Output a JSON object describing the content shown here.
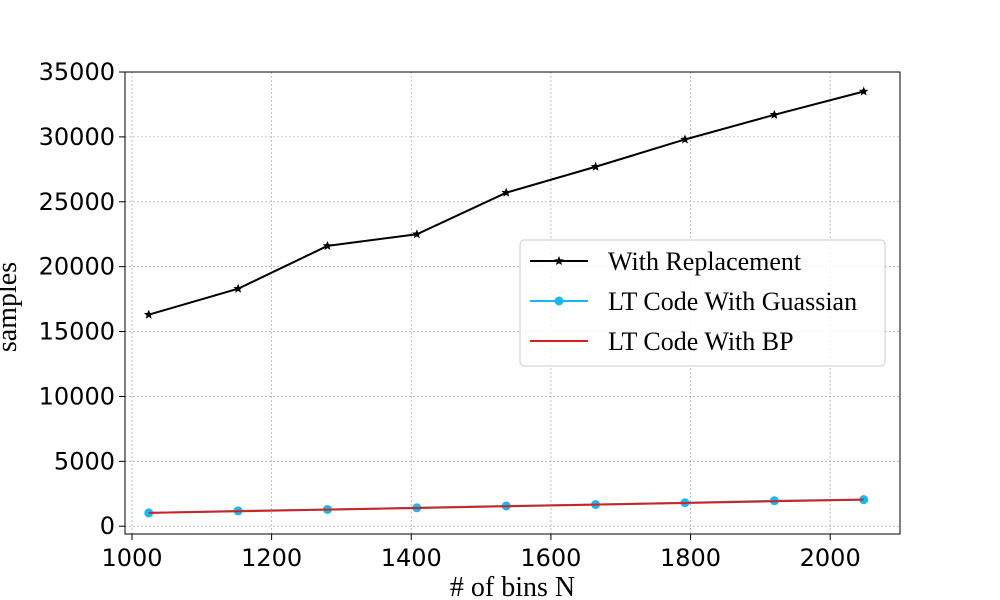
{
  "chart_data": {
    "type": "line",
    "title": "",
    "xlabel": "# of bins N",
    "ylabel": "samples",
    "x": [
      1024,
      1152,
      1280,
      1408,
      1536,
      1664,
      1792,
      1920,
      2048
    ],
    "xlim": [
      990,
      2100
    ],
    "ylim": [
      -600,
      35000
    ],
    "xticks": [
      1000,
      1200,
      1400,
      1600,
      1800,
      2000
    ],
    "yticks": [
      0,
      5000,
      10000,
      15000,
      20000,
      25000,
      30000,
      35000
    ],
    "grid": true,
    "legend_position": "center-right",
    "series": [
      {
        "name": "With Replacement",
        "values": [
          16300,
          18300,
          21600,
          22500,
          25700,
          27700,
          29800,
          31700,
          33500
        ],
        "color": "#000000",
        "marker": "star"
      },
      {
        "name": "LT Code With Guassian",
        "values": [
          1024,
          1180,
          1290,
          1420,
          1560,
          1670,
          1810,
          1960,
          2048
        ],
        "color": "#1ab8f0",
        "marker": "circle"
      },
      {
        "name": "LT Code With BP",
        "values": [
          1024,
          1152,
          1280,
          1408,
          1536,
          1664,
          1792,
          1920,
          2048
        ],
        "color": "#d62020",
        "marker": "none"
      }
    ]
  }
}
